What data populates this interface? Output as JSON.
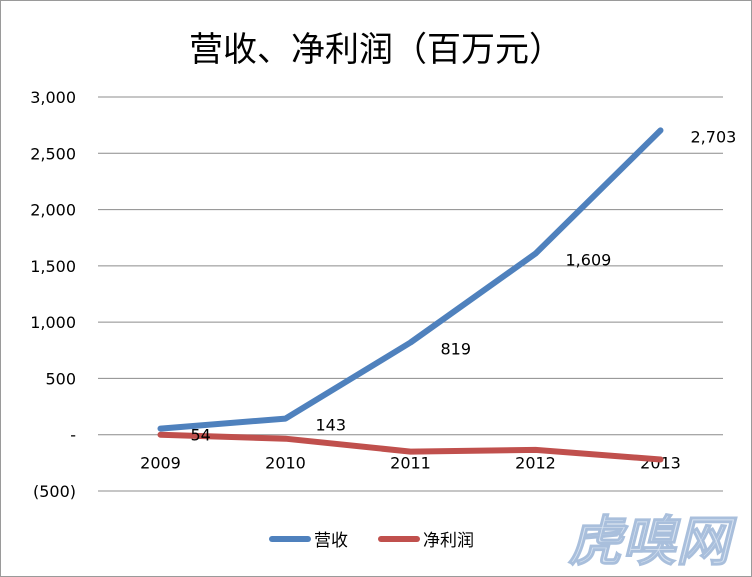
{
  "title": "营收、净利润（百万元）",
  "watermark": "虎嗅网",
  "colors": {
    "revenue": "#4f81bd",
    "net_profit": "#c0504d",
    "grid": "#8c8c8c"
  },
  "chart_data": {
    "type": "line",
    "title": "营收、净利润（百万元）",
    "categories": [
      "2009",
      "2010",
      "2011",
      "2012",
      "2013"
    ],
    "ylim": [
      -500,
      3000
    ],
    "yticks": [
      3000,
      2500,
      2000,
      1500,
      1000,
      500,
      0,
      -500
    ],
    "ytick_labels": [
      "3,000",
      "2,500",
      "2,000",
      "1,500",
      "1,000",
      "500",
      "-",
      "(500)"
    ],
    "grid": true,
    "legend": "bottom",
    "series": [
      {
        "name": "营收",
        "values": [
          54,
          143,
          819,
          1609,
          2703
        ],
        "data_labels": [
          "54",
          "143",
          "819",
          "1,609",
          "2,703"
        ],
        "color": "#4f81bd"
      },
      {
        "name": "净利润",
        "values": [
          0,
          -35,
          -150,
          -135,
          -220
        ],
        "color": "#c0504d"
      }
    ]
  }
}
